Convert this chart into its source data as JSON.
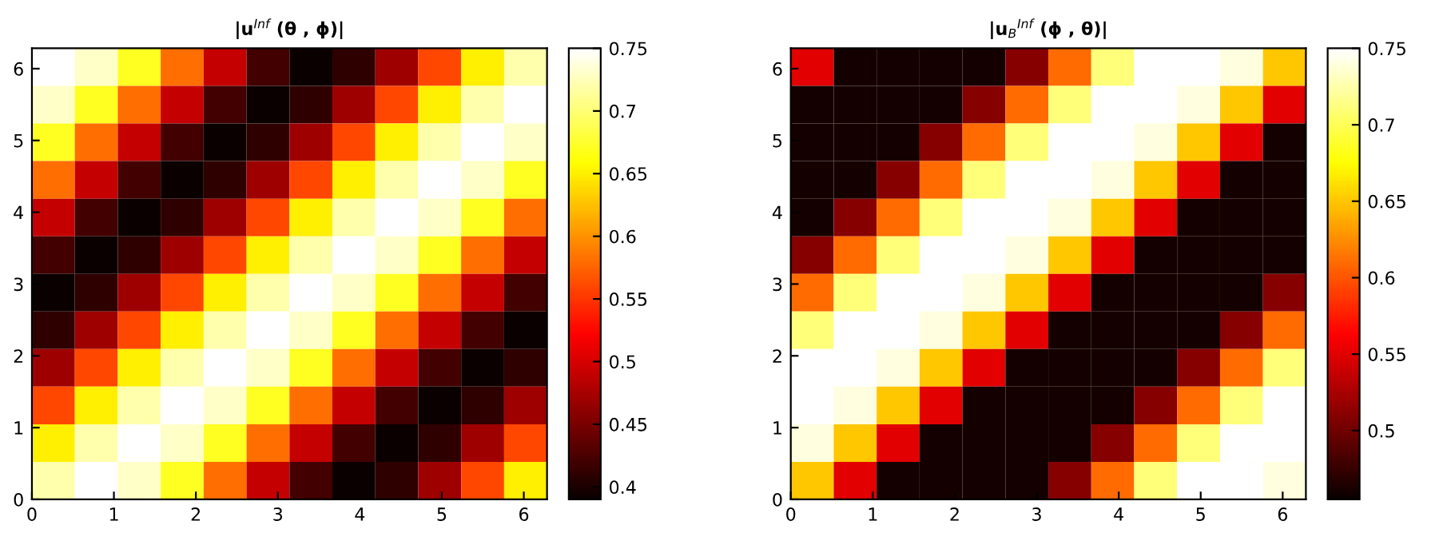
{
  "chart_data": [
    {
      "type": "heatmap",
      "title": "|u$^{Inf}$ (θ , ϕ)|",
      "xlim": [
        0,
        6.2832
      ],
      "ylim": [
        0,
        6.2832
      ],
      "xticks": [
        0,
        1,
        2,
        3,
        4,
        5,
        6
      ],
      "yticks": [
        0,
        1,
        2,
        3,
        4,
        5,
        6
      ],
      "clim": [
        0.39,
        0.75
      ],
      "cticks": [
        0.4,
        0.45,
        0.5,
        0.55,
        0.6,
        0.65,
        0.7,
        0.75
      ],
      "cells": [
        [
          0.75,
          0.73,
          0.67,
          0.58,
          0.49,
          0.42,
          0.39,
          0.41,
          0.47,
          0.56,
          0.65,
          0.72
        ],
        [
          0.73,
          0.67,
          0.58,
          0.49,
          0.42,
          0.39,
          0.41,
          0.47,
          0.56,
          0.65,
          0.72,
          0.75
        ],
        [
          0.67,
          0.58,
          0.49,
          0.42,
          0.39,
          0.41,
          0.47,
          0.56,
          0.65,
          0.72,
          0.75,
          0.73
        ],
        [
          0.58,
          0.49,
          0.42,
          0.39,
          0.41,
          0.47,
          0.56,
          0.65,
          0.72,
          0.75,
          0.73,
          0.67
        ],
        [
          0.49,
          0.42,
          0.39,
          0.41,
          0.47,
          0.56,
          0.65,
          0.72,
          0.75,
          0.73,
          0.67,
          0.58
        ],
        [
          0.42,
          0.39,
          0.41,
          0.47,
          0.56,
          0.65,
          0.72,
          0.75,
          0.73,
          0.67,
          0.58,
          0.49
        ],
        [
          0.39,
          0.41,
          0.47,
          0.56,
          0.65,
          0.72,
          0.75,
          0.73,
          0.67,
          0.58,
          0.49,
          0.42
        ],
        [
          0.41,
          0.47,
          0.56,
          0.65,
          0.72,
          0.75,
          0.73,
          0.67,
          0.58,
          0.49,
          0.42,
          0.39
        ],
        [
          0.47,
          0.56,
          0.65,
          0.72,
          0.75,
          0.73,
          0.67,
          0.58,
          0.49,
          0.42,
          0.39,
          0.41
        ],
        [
          0.56,
          0.65,
          0.72,
          0.75,
          0.73,
          0.67,
          0.58,
          0.49,
          0.42,
          0.39,
          0.41,
          0.47
        ],
        [
          0.65,
          0.72,
          0.75,
          0.73,
          0.67,
          0.58,
          0.49,
          0.42,
          0.39,
          0.41,
          0.47,
          0.56
        ],
        [
          0.72,
          0.75,
          0.73,
          0.67,
          0.58,
          0.49,
          0.42,
          0.39,
          0.41,
          0.47,
          0.56,
          0.65
        ]
      ]
    },
    {
      "type": "heatmap",
      "title": "|u$_{B}$$^{Inf}$ (ϕ , θ)|",
      "xlim": [
        0,
        6.2832
      ],
      "ylim": [
        0,
        6.2832
      ],
      "xticks": [
        0,
        1,
        2,
        3,
        4,
        5,
        6
      ],
      "yticks": [
        0,
        1,
        2,
        3,
        4,
        5,
        6
      ],
      "clim": [
        0.455,
        0.75
      ],
      "cticks": [
        0.5,
        0.55,
        0.6,
        0.65,
        0.7,
        0.75
      ],
      "cells": [
        [
          0.55,
          0.46,
          0.46,
          0.46,
          0.46,
          0.51,
          0.61,
          0.71,
          0.75,
          0.75,
          0.74,
          0.65
        ],
        [
          0.46,
          0.46,
          0.46,
          0.46,
          0.51,
          0.61,
          0.71,
          0.75,
          0.75,
          0.74,
          0.65,
          0.55
        ],
        [
          0.46,
          0.46,
          0.46,
          0.51,
          0.61,
          0.71,
          0.75,
          0.75,
          0.74,
          0.65,
          0.55,
          0.46
        ],
        [
          0.46,
          0.46,
          0.51,
          0.61,
          0.71,
          0.75,
          0.75,
          0.74,
          0.65,
          0.55,
          0.46,
          0.46
        ],
        [
          0.46,
          0.51,
          0.61,
          0.71,
          0.75,
          0.75,
          0.74,
          0.65,
          0.55,
          0.46,
          0.46,
          0.46
        ],
        [
          0.51,
          0.61,
          0.71,
          0.75,
          0.75,
          0.74,
          0.65,
          0.55,
          0.46,
          0.46,
          0.46,
          0.46
        ],
        [
          0.61,
          0.71,
          0.75,
          0.75,
          0.74,
          0.65,
          0.55,
          0.46,
          0.46,
          0.46,
          0.46,
          0.51
        ],
        [
          0.71,
          0.75,
          0.75,
          0.74,
          0.65,
          0.55,
          0.46,
          0.46,
          0.46,
          0.46,
          0.51,
          0.61
        ],
        [
          0.75,
          0.75,
          0.74,
          0.65,
          0.55,
          0.46,
          0.46,
          0.46,
          0.46,
          0.51,
          0.61,
          0.71
        ],
        [
          0.75,
          0.74,
          0.65,
          0.55,
          0.46,
          0.46,
          0.46,
          0.46,
          0.51,
          0.61,
          0.71,
          0.75
        ],
        [
          0.74,
          0.65,
          0.55,
          0.46,
          0.46,
          0.46,
          0.46,
          0.51,
          0.61,
          0.71,
          0.75,
          0.75
        ],
        [
          0.65,
          0.55,
          0.46,
          0.46,
          0.46,
          0.46,
          0.51,
          0.61,
          0.71,
          0.75,
          0.75,
          0.74
        ]
      ]
    }
  ]
}
